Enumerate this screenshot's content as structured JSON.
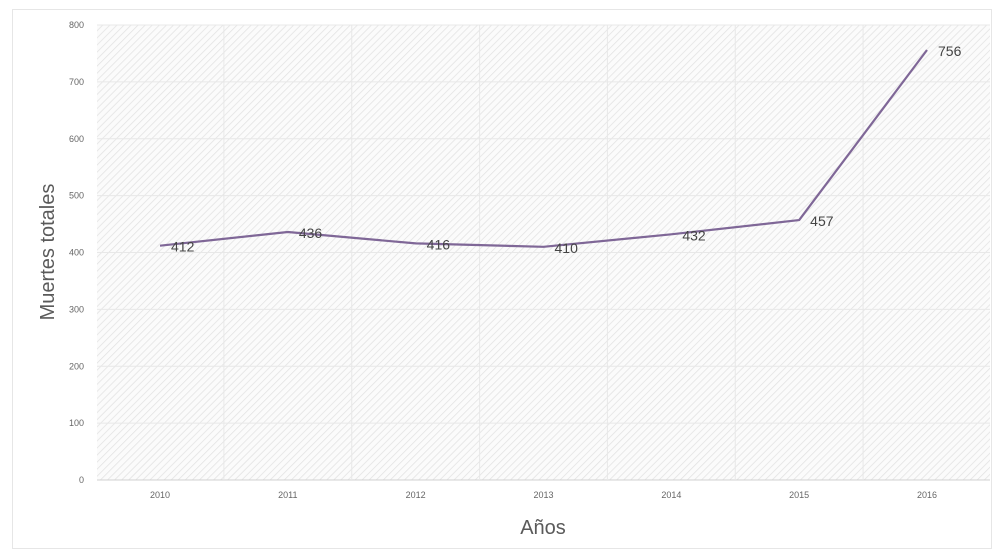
{
  "chart_data": {
    "type": "line",
    "title": "",
    "xlabel": "Años",
    "ylabel": "Muertes totales",
    "ylim": [
      0,
      800
    ],
    "yticks": [
      0,
      100,
      200,
      300,
      400,
      500,
      600,
      700,
      800
    ],
    "grid": true,
    "categories": [
      "2010",
      "2011",
      "2012",
      "2013",
      "2014",
      "2015",
      "2016"
    ],
    "values": [
      412,
      436,
      416,
      410,
      432,
      457,
      756
    ],
    "line_color": "#7f6797"
  }
}
